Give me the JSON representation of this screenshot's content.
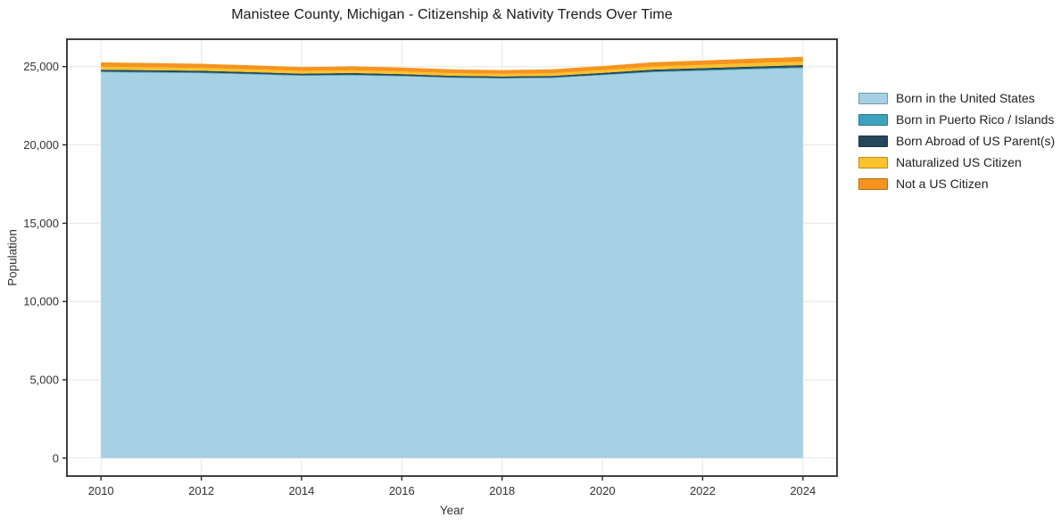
{
  "chart_data": {
    "type": "area",
    "stacked": true,
    "title": "Manistee County, Michigan - Citizenship & Nativity Trends Over Time",
    "xlabel": "Year",
    "ylabel": "Population",
    "x": [
      2010,
      2011,
      2012,
      2013,
      2014,
      2015,
      2016,
      2017,
      2018,
      2019,
      2020,
      2021,
      2022,
      2023,
      2024
    ],
    "series": [
      {
        "id": "born-in-us",
        "name": "Born in the United States",
        "color": "#a6d0e4",
        "values": [
          24640,
          24610,
          24580,
          24500,
          24410,
          24440,
          24380,
          24280,
          24240,
          24270,
          24450,
          24640,
          24730,
          24820,
          24900
        ]
      },
      {
        "id": "born-puerto-rico-islands",
        "name": "Born in Puerto Rico / Islands",
        "color": "#3ba3bf",
        "values": [
          45,
          45,
          42,
          40,
          38,
          40,
          38,
          36,
          35,
          36,
          40,
          46,
          50,
          55,
          60
        ]
      },
      {
        "id": "born-abroad-us-parents",
        "name": "Born Abroad of US Parent(s)",
        "color": "#25485c",
        "values": [
          120,
          118,
          115,
          110,
          106,
          110,
          105,
          100,
          98,
          104,
          110,
          120,
          126,
          132,
          140
        ]
      },
      {
        "id": "naturalized-us-citizen",
        "name": "Naturalized US Citizen",
        "color": "#fbc22d",
        "values": [
          185,
          182,
          180,
          175,
          170,
          174,
          170,
          166,
          164,
          170,
          176,
          190,
          200,
          210,
          220
        ]
      },
      {
        "id": "not-a-us-citizen",
        "name": "Not a US Citizen",
        "color": "#f7941e",
        "values": [
          280,
          272,
          266,
          256,
          250,
          256,
          248,
          242,
          244,
          250,
          262,
          280,
          286,
          292,
          300
        ]
      }
    ],
    "xticks": [
      2010,
      2012,
      2014,
      2016,
      2018,
      2020,
      2022,
      2024
    ],
    "xtick_labels": [
      "2010",
      "2012",
      "2014",
      "2016",
      "2018",
      "2020",
      "2022",
      "2024"
    ],
    "yticks": [
      0,
      5000,
      10000,
      15000,
      20000,
      25000
    ],
    "ytick_labels": [
      "0",
      "5,000",
      "10,000",
      "15,000",
      "20,000",
      "25,000"
    ],
    "xlim": [
      2009.32,
      2024.68
    ],
    "ylim": [
      -1150,
      26750
    ],
    "grid": true,
    "legend_position": "right",
    "colors": {
      "grid": "#e7e7e7",
      "spine": "#2b2b2b",
      "tick_text": "#333333",
      "background": "#ffffff"
    }
  }
}
